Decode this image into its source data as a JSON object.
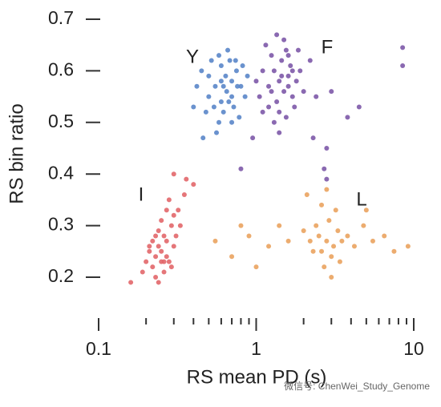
{
  "chart_data": {
    "type": "scatter",
    "xlabel": "RS mean PD (s)",
    "ylabel": "RS bin ratio",
    "xscale": "log",
    "xlim": [
      0.1,
      10
    ],
    "ylim": [
      0.2,
      0.7
    ],
    "xticks": [
      0.1,
      1,
      10
    ],
    "xminor_ticks": [
      0.2,
      0.3,
      0.4,
      0.5,
      0.6,
      0.7,
      0.8,
      0.9,
      2,
      3,
      4,
      5,
      6,
      7,
      8,
      9
    ],
    "yticks": [
      0.2,
      0.3,
      0.4,
      0.5,
      0.6,
      0.7
    ],
    "watermark": "微信号: ChenWei_Study_Genome",
    "series": [
      {
        "name": "Y",
        "color": "#5a86c9",
        "x": [
          0.65,
          0.6,
          0.7,
          0.55,
          0.75,
          0.5,
          0.62,
          0.68,
          0.58,
          0.8,
          0.45,
          0.72,
          0.64,
          0.52,
          0.85,
          0.6,
          0.7,
          0.48,
          0.66,
          0.78,
          0.42,
          0.56,
          0.74,
          0.62,
          0.88,
          0.5,
          0.7,
          0.6,
          0.54,
          0.82,
          0.4,
          0.58,
          0.67,
          0.76,
          0.46
        ],
        "y": [
          0.56,
          0.58,
          0.55,
          0.57,
          0.6,
          0.55,
          0.52,
          0.62,
          0.5,
          0.57,
          0.6,
          0.53,
          0.59,
          0.62,
          0.55,
          0.54,
          0.58,
          0.52,
          0.64,
          0.51,
          0.57,
          0.48,
          0.62,
          0.57,
          0.59,
          0.59,
          0.5,
          0.61,
          0.53,
          0.61,
          0.53,
          0.63,
          0.54,
          0.57,
          0.47
        ]
      },
      {
        "name": "F",
        "color": "#7d59a8",
        "x": [
          1.4,
          1.3,
          1.5,
          1.6,
          1.2,
          1.45,
          1.7,
          1.1,
          1.35,
          1.55,
          1.8,
          1.25,
          1.65,
          1.05,
          1.4,
          1.9,
          1.5,
          1.3,
          2.0,
          1.15,
          1.75,
          1.6,
          1.2,
          2.2,
          1.45,
          1.35,
          1.0,
          1.85,
          1.55,
          1.25,
          1.7,
          1.4,
          2.4,
          1.1,
          1.6,
          8.5,
          8.5,
          4.5,
          3.0,
          2.8,
          2.7,
          2.8,
          0.8,
          0.95,
          3.8,
          2.3
        ],
        "y": [
          0.58,
          0.6,
          0.56,
          0.59,
          0.57,
          0.62,
          0.55,
          0.6,
          0.54,
          0.64,
          0.58,
          0.63,
          0.61,
          0.55,
          0.52,
          0.6,
          0.66,
          0.5,
          0.56,
          0.65,
          0.53,
          0.57,
          0.53,
          0.62,
          0.59,
          0.67,
          0.58,
          0.64,
          0.51,
          0.56,
          0.6,
          0.48,
          0.55,
          0.52,
          0.63,
          0.645,
          0.61,
          0.53,
          0.56,
          0.45,
          0.41,
          0.39,
          0.41,
          0.47,
          0.51,
          0.47
        ]
      },
      {
        "name": "I",
        "color": "#e2676a",
        "x": [
          0.25,
          0.23,
          0.27,
          0.22,
          0.28,
          0.24,
          0.26,
          0.3,
          0.21,
          0.25,
          0.29,
          0.23,
          0.27,
          0.2,
          0.32,
          0.26,
          0.24,
          0.31,
          0.22,
          0.28,
          0.35,
          0.33,
          0.19,
          0.26,
          0.3,
          0.24,
          0.36,
          0.4,
          0.3,
          0.16,
          0.25,
          0.27,
          0.21,
          0.23,
          0.29
        ],
        "y": [
          0.25,
          0.24,
          0.27,
          0.22,
          0.23,
          0.29,
          0.21,
          0.26,
          0.26,
          0.31,
          0.3,
          0.2,
          0.24,
          0.23,
          0.33,
          0.28,
          0.19,
          0.28,
          0.27,
          0.35,
          0.36,
          0.3,
          0.21,
          0.23,
          0.32,
          0.26,
          0.39,
          0.38,
          0.4,
          0.19,
          0.23,
          0.33,
          0.25,
          0.28,
          0.22
        ]
      },
      {
        "name": "L",
        "color": "#eaa35f",
        "x": [
          2.8,
          2.5,
          3.1,
          2.6,
          3.3,
          2.4,
          3.0,
          2.9,
          2.2,
          3.5,
          2.7,
          3.2,
          2.3,
          3.8,
          2.6,
          3.4,
          2.0,
          4.2,
          4.8,
          5.5,
          6.5,
          7.5,
          9.2,
          1.6,
          1.2,
          0.9,
          0.7,
          0.55,
          1.4,
          1.0,
          2.1,
          2.8,
          3.0,
          5.0,
          0.8
        ],
        "y": [
          0.27,
          0.28,
          0.26,
          0.25,
          0.29,
          0.3,
          0.24,
          0.31,
          0.27,
          0.27,
          0.22,
          0.33,
          0.25,
          0.28,
          0.34,
          0.23,
          0.29,
          0.26,
          0.3,
          0.27,
          0.28,
          0.25,
          0.26,
          0.27,
          0.26,
          0.28,
          0.24,
          0.27,
          0.3,
          0.22,
          0.36,
          0.37,
          0.2,
          0.33,
          0.3
        ]
      }
    ]
  }
}
